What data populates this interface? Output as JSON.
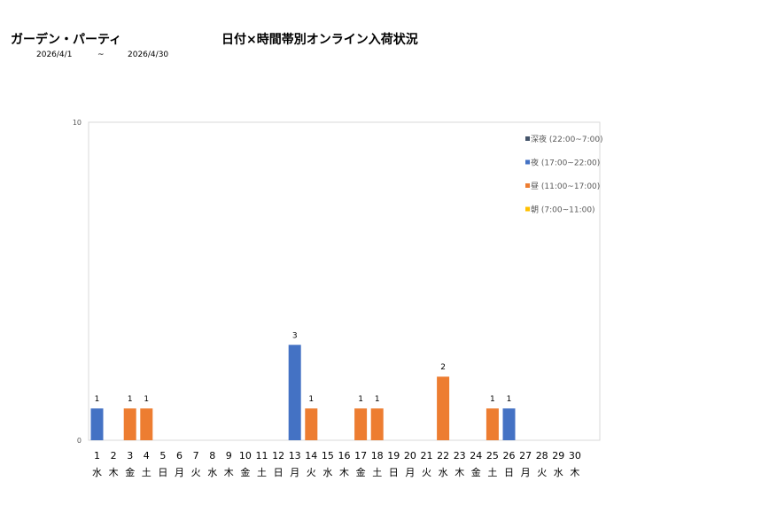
{
  "header": {
    "store_name": "ガーデン・パーティ",
    "report_title": "日付×時間帯別オンライン入荷状況",
    "date_from": "2026/4/1",
    "date_separator": "~",
    "date_to": "2026/4/30"
  },
  "chart_data": {
    "type": "bar",
    "stacked": true,
    "title": "",
    "xlabel": "",
    "ylabel": "",
    "ylim": [
      0,
      10
    ],
    "y_ticks": [
      "0",
      "10"
    ],
    "grid": false,
    "legend_position": "top-right",
    "categories": [
      "1",
      "2",
      "3",
      "4",
      "5",
      "6",
      "7",
      "8",
      "9",
      "10",
      "11",
      "12",
      "13",
      "14",
      "15",
      "16",
      "17",
      "18",
      "19",
      "20",
      "21",
      "22",
      "23",
      "24",
      "25",
      "26",
      "27",
      "28",
      "29",
      "30"
    ],
    "weekdays": [
      "水",
      "木",
      "金",
      "土",
      "日",
      "月",
      "火",
      "水",
      "木",
      "金",
      "土",
      "日",
      "月",
      "火",
      "水",
      "木",
      "金",
      "土",
      "日",
      "月",
      "火",
      "水",
      "木",
      "金",
      "土",
      "日",
      "月",
      "火",
      "水",
      "木"
    ],
    "series": [
      {
        "name": "深夜 (22:00~7:00)",
        "color": "#44546a",
        "values": [
          0,
          0,
          0,
          0,
          0,
          0,
          0,
          0,
          0,
          0,
          0,
          0,
          0,
          0,
          0,
          0,
          0,
          0,
          0,
          0,
          0,
          0,
          0,
          0,
          0,
          0,
          0,
          0,
          0,
          0
        ]
      },
      {
        "name": "夜 (17:00~22:00)",
        "color": "#4472c4",
        "values": [
          1,
          0,
          0,
          0,
          0,
          0,
          0,
          0,
          0,
          0,
          0,
          0,
          3,
          0,
          0,
          0,
          0,
          0,
          0,
          0,
          0,
          0,
          0,
          0,
          0,
          1,
          0,
          0,
          0,
          0
        ]
      },
      {
        "name": "昼 (11:00~17:00)",
        "color": "#ed7d31",
        "values": [
          0,
          0,
          1,
          1,
          0,
          0,
          0,
          0,
          0,
          0,
          0,
          0,
          0,
          1,
          0,
          0,
          1,
          1,
          0,
          0,
          0,
          2,
          0,
          0,
          1,
          0,
          0,
          0,
          0,
          0
        ]
      },
      {
        "name": "朝 (7:00~11:00)",
        "color": "#ffc000",
        "values": [
          0,
          0,
          0,
          0,
          0,
          0,
          0,
          0,
          0,
          0,
          0,
          0,
          0,
          0,
          0,
          0,
          0,
          0,
          0,
          0,
          0,
          0,
          0,
          0,
          0,
          0,
          0,
          0,
          0,
          0
        ]
      }
    ],
    "totals": [
      1,
      0,
      1,
      1,
      0,
      0,
      0,
      0,
      0,
      0,
      0,
      0,
      3,
      1,
      0,
      0,
      1,
      1,
      0,
      0,
      0,
      2,
      0,
      0,
      1,
      1,
      0,
      0,
      0,
      0
    ]
  }
}
